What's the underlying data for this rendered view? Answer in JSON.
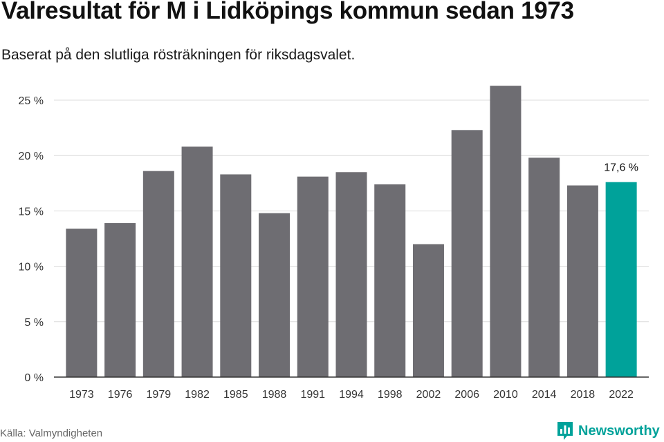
{
  "header": {
    "title": "Valresultat för M i Lidköpings kommun sedan 1973",
    "subtitle": "Baserat på den slutliga rösträkningen för riksdagsvalet."
  },
  "footer": {
    "source": "Källa: Valmyndigheten",
    "brand": "Newsworthy",
    "brand_icon": "newsworthy-logo-icon"
  },
  "colors": {
    "bar": "#6e6d72",
    "highlight": "#00a29a",
    "grid": "#dcdcdc",
    "axis": "#333333"
  },
  "chart_data": {
    "type": "bar",
    "categories": [
      "1973",
      "1976",
      "1979",
      "1982",
      "1985",
      "1988",
      "1991",
      "1994",
      "1998",
      "2002",
      "2006",
      "2010",
      "2014",
      "2018",
      "2022"
    ],
    "values": [
      13.4,
      13.9,
      18.6,
      20.8,
      18.3,
      14.8,
      18.1,
      18.5,
      17.4,
      12.0,
      22.3,
      26.3,
      19.8,
      17.3,
      17.6
    ],
    "highlight_index": 14,
    "data_labels": [
      {
        "index": 14,
        "text": "17,6 %"
      }
    ],
    "ylim": [
      0,
      25
    ],
    "yticks": [
      {
        "value": 0,
        "label": "0 %"
      },
      {
        "value": 5,
        "label": "5 %"
      },
      {
        "value": 10,
        "label": "10 %"
      },
      {
        "value": 15,
        "label": "15 %"
      },
      {
        "value": 20,
        "label": "20 %"
      },
      {
        "value": 25,
        "label": "25 %"
      }
    ],
    "grid": true,
    "title": "Valresultat för M i Lidköpings kommun sedan 1973",
    "xlabel": "",
    "ylabel": ""
  }
}
